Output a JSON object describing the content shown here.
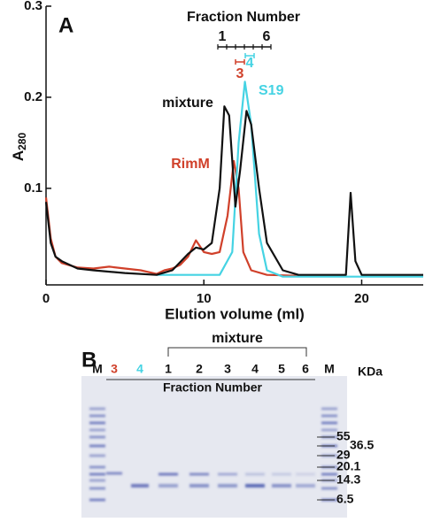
{
  "chart_data": {
    "type": "line",
    "xlabel": "Elution volume (ml)",
    "ylabel": {
      "main": "A",
      "sub": "280"
    },
    "xlim": [
      0,
      23.9
    ],
    "ylim": [
      -0.006,
      0.3
    ],
    "xticks": [
      0,
      10,
      20
    ],
    "yticks": [
      0.1,
      0.2,
      0.3
    ],
    "annotations": [
      "A",
      "Fraction Number",
      "1",
      "6",
      "3",
      "4",
      "mixture",
      "S19",
      "RimM"
    ],
    "series": [
      {
        "name": "RimM",
        "color": "#d0402a",
        "x": [
          0,
          0.3,
          0.6,
          1,
          2,
          3,
          4,
          5,
          6,
          7,
          7.5,
          8,
          8.5,
          9,
          9.5,
          10,
          10.5,
          11,
          11.5,
          11.9,
          12.2,
          12.5,
          13,
          14,
          16
        ],
        "values": [
          0.09,
          0.045,
          0.025,
          0.018,
          0.013,
          0.012,
          0.014,
          0.012,
          0.01,
          0.006,
          0.01,
          0.012,
          0.016,
          0.025,
          0.043,
          0.03,
          0.028,
          0.03,
          0.07,
          0.13,
          0.1,
          0.03,
          0.01,
          0.005,
          0.004
        ]
      },
      {
        "name": "S19",
        "color": "#45d3e3",
        "x": [
          7,
          11,
          11.8,
          12.2,
          12.6,
          13,
          13.5,
          14,
          15,
          23.9
        ],
        "values": [
          0.005,
          0.005,
          0.03,
          0.15,
          0.217,
          0.17,
          0.05,
          0.01,
          0.003,
          0.003
        ]
      },
      {
        "name": "mixture",
        "color": "#111111",
        "x": [
          0,
          0.3,
          0.6,
          1,
          2,
          3,
          5,
          7,
          8,
          9,
          9.5,
          10,
          10.5,
          11,
          11.3,
          11.6,
          12,
          12.3,
          12.7,
          13,
          13.5,
          14,
          15,
          16,
          19,
          19.3,
          19.6,
          20,
          23.9
        ],
        "values": [
          0.085,
          0.04,
          0.025,
          0.02,
          0.012,
          0.01,
          0.007,
          0.005,
          0.01,
          0.028,
          0.035,
          0.033,
          0.04,
          0.1,
          0.19,
          0.18,
          0.08,
          0.12,
          0.185,
          0.17,
          0.1,
          0.04,
          0.01,
          0.005,
          0.005,
          0.095,
          0.02,
          0.005,
          0.005
        ]
      }
    ]
  },
  "gel": {
    "panel": "B",
    "group": "mixture",
    "subtitle": "Fraction Number",
    "unit": "KDa",
    "lanes": [
      "M",
      "3",
      "4",
      "1",
      "2",
      "3",
      "4",
      "5",
      "6",
      "M"
    ],
    "markers": [
      "55",
      "36.5",
      "29",
      "20.1",
      "14.3",
      "6.5"
    ]
  }
}
